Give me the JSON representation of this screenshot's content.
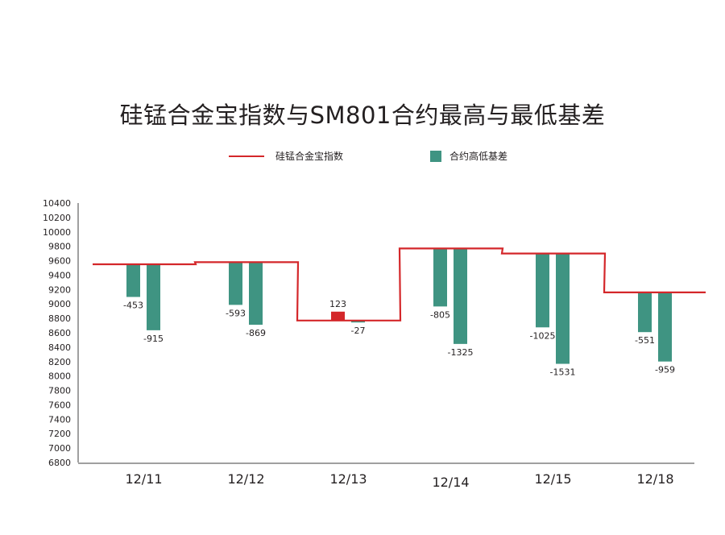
{
  "title": "硅锰合金宝指数与SM801合约最高与最低基差",
  "legend": {
    "line_label": "硅锰合金宝指数",
    "bar_label": "合约高低基差"
  },
  "colors": {
    "line": "#d4272a",
    "bar_negative": "#3f9482",
    "bar_positive": "#d4272a",
    "axis": "#a0a0a0"
  },
  "chart_data": {
    "type": "bar+step-line",
    "categories": [
      "12/11",
      "12/12",
      "12/13",
      "12/14",
      "12/15",
      "12/18"
    ],
    "ylim": [
      6800,
      10400
    ],
    "yticks": [
      6800,
      7000,
      7200,
      7400,
      7600,
      7800,
      8000,
      8200,
      8400,
      8600,
      8800,
      9000,
      9200,
      9400,
      9600,
      9800,
      10000,
      10200,
      10400
    ],
    "series": [
      {
        "name": "硅锰合金宝指数",
        "type": "step-line",
        "values": [
          9550,
          9580,
          8770,
          9770,
          9700,
          9160
        ]
      },
      {
        "name": "合约高低基差",
        "type": "bar",
        "values": [
          [
            -453,
            -915
          ],
          [
            -593,
            -869
          ],
          [
            123,
            -27
          ],
          [
            -805,
            -1325
          ],
          [
            -1025,
            -1531
          ],
          [
            -551,
            -959
          ]
        ]
      }
    ],
    "grid": false,
    "legend_position": "top-center"
  }
}
